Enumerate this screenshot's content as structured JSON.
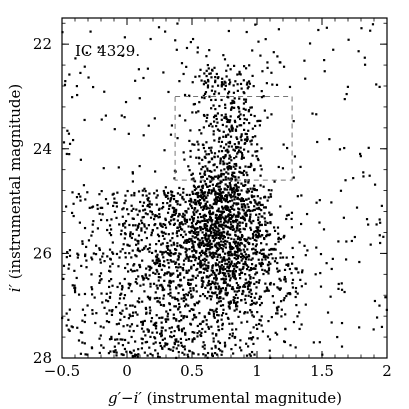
{
  "chart_data": {
    "type": "scatter",
    "xlabel_main": "g′−i′",
    "xlabel_sub": " (instrumental magnitude)",
    "ylabel_main": "i′",
    "ylabel_sub": " (instrumental magnitude)",
    "annotation": "IC 4329.",
    "xlim": [
      -0.5,
      2.0
    ],
    "ylim": [
      28,
      21.5
    ],
    "y_inverted": true,
    "x_ticks": [
      {
        "value": -0.5,
        "label": "−0.5"
      },
      {
        "value": 0,
        "label": "0"
      },
      {
        "value": 0.5,
        "label": "0.5"
      },
      {
        "value": 1,
        "label": "1"
      },
      {
        "value": 1.5,
        "label": "1.5"
      },
      {
        "value": 2,
        "label": "2"
      }
    ],
    "y_ticks": [
      {
        "value": 22,
        "label": "22"
      },
      {
        "value": 24,
        "label": "24"
      },
      {
        "value": 26,
        "label": "26"
      },
      {
        "value": 28,
        "label": "28"
      }
    ],
    "selection_box": {
      "x": [
        0.37,
        1.27
      ],
      "y": [
        23.0,
        24.6
      ]
    },
    "point_color": "#000000",
    "population": {
      "red_sequence_center": [
        0.75,
        25.7
      ],
      "magnitude_range": [
        22.4,
        28.0
      ],
      "color_range": [
        -0.5,
        2.0
      ],
      "approx_point_count": 3200
    }
  }
}
